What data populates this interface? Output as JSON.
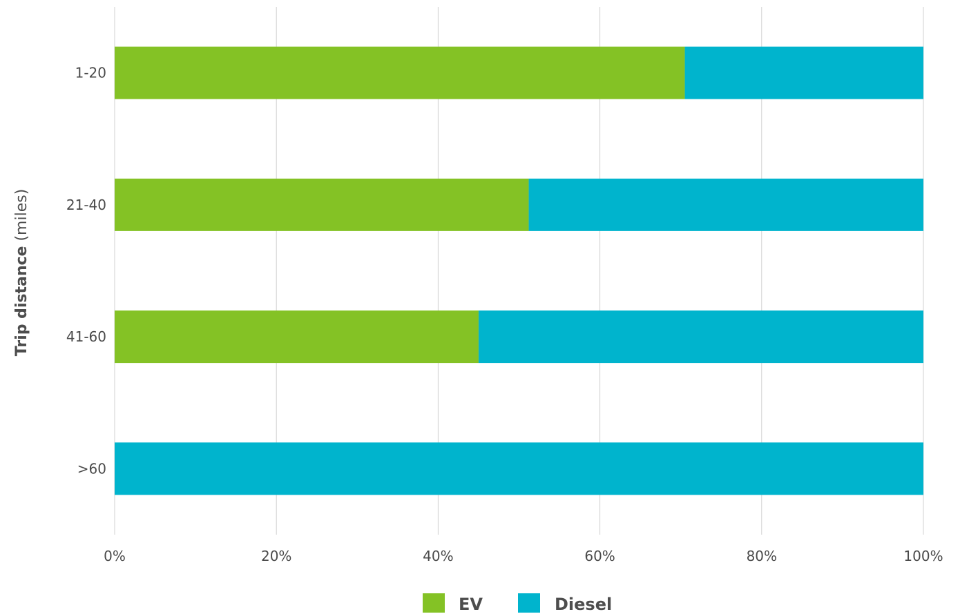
{
  "chart_data": {
    "type": "bar",
    "orientation": "horizontal",
    "stacked": "percent",
    "categories": [
      "1-20",
      "21-40",
      "41-60",
      ">60"
    ],
    "series": [
      {
        "name": "EV",
        "values": [
          70.5,
          51.2,
          45.0,
          0
        ],
        "color": "#84c225"
      },
      {
        "name": "Diesel",
        "values": [
          29.5,
          48.8,
          55.0,
          100
        ],
        "color": "#00b4cd"
      }
    ],
    "xlim": [
      0,
      100
    ],
    "x_ticks": [
      "0%",
      "20%",
      "40%",
      "60%",
      "80%",
      "100%"
    ],
    "ylabel_bold": "Trip distance",
    "ylabel_rest": " (miles)",
    "grid": "vertical",
    "legend_position": "bottom"
  }
}
